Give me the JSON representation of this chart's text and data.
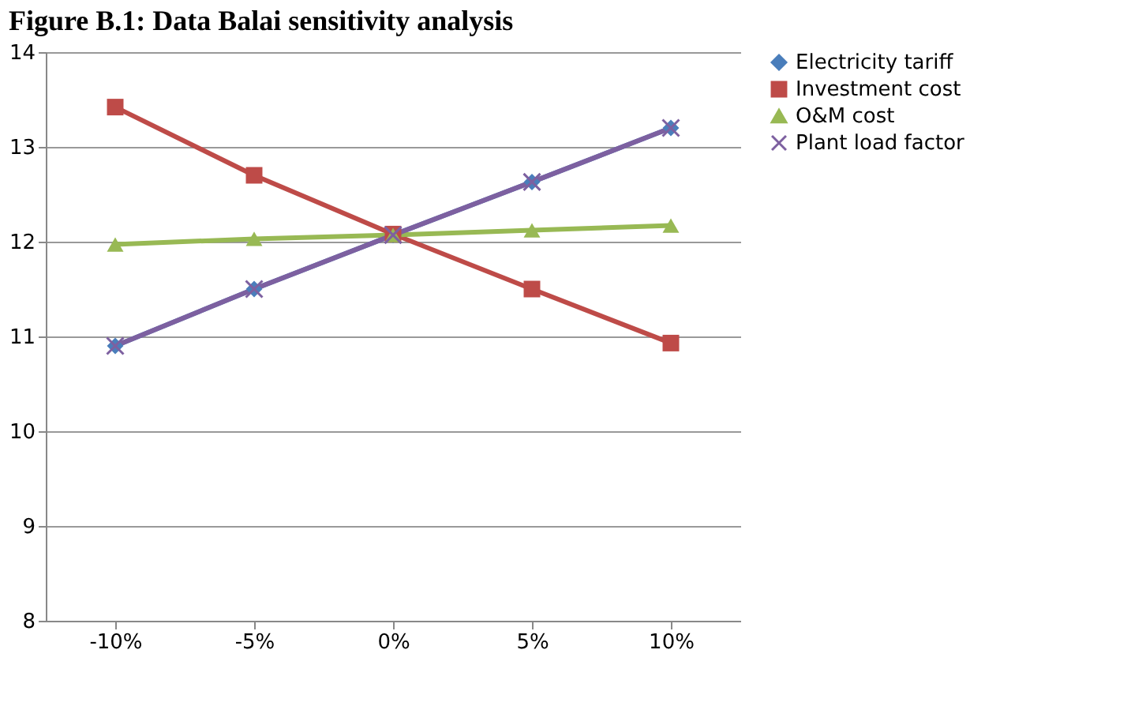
{
  "chart_data": {
    "type": "line",
    "title": "Figure B.1: Data Balai sensitivity analysis",
    "categories": [
      "-10%",
      "-5%",
      "0%",
      "5%",
      "10%"
    ],
    "series": [
      {
        "name": "Electricity tariff",
        "color": "#4a7ebb",
        "marker": "diamond",
        "values": [
          10.9,
          11.5,
          12.07,
          12.63,
          13.2
        ]
      },
      {
        "name": "Investment cost",
        "color": "#be4b48",
        "marker": "square",
        "values": [
          13.42,
          12.7,
          12.08,
          11.5,
          10.93
        ]
      },
      {
        "name": "O&M cost",
        "color": "#98b954",
        "marker": "triangle",
        "values": [
          11.97,
          12.03,
          12.07,
          12.12,
          12.17
        ]
      },
      {
        "name": "Plant load factor",
        "color": "#7d60a0",
        "marker": "cross",
        "values": [
          10.9,
          11.5,
          12.07,
          12.63,
          13.2
        ]
      }
    ],
    "ylim": [
      8,
      14
    ],
    "yticks": [
      8,
      9,
      10,
      11,
      12,
      13,
      14
    ],
    "grid": "y",
    "legend": "right",
    "line_style": "solid"
  }
}
